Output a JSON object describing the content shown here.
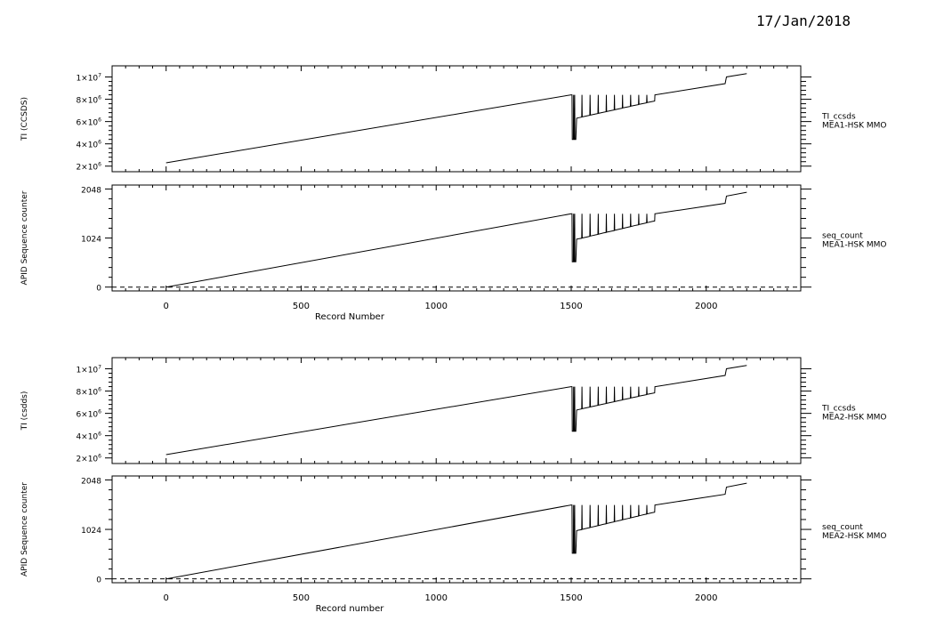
{
  "date": "17/Jan/2018",
  "chart_data": [
    {
      "type": "line",
      "ylabel": "TI (CCSDS)",
      "ylim": [
        1500000,
        11000000
      ],
      "xlim": [
        -200,
        2350
      ],
      "y_ticks": [
        {
          "v": 2000000,
          "label": "2×10",
          "exp": "6"
        },
        {
          "v": 4000000,
          "label": "4×10",
          "exp": "6"
        },
        {
          "v": 6000000,
          "label": "6×10",
          "exp": "6"
        },
        {
          "v": 8000000,
          "label": "8×10",
          "exp": "6"
        },
        {
          "v": 10000000,
          "label": "1×10",
          "exp": "7"
        }
      ],
      "annotation": [
        "TI_ccsds",
        "MEA1-HSK MMO"
      ],
      "series": [
        {
          "x": [
            0,
            1500,
            1503,
            1504,
            1505,
            1508,
            1509,
            1510,
            1512,
            1513,
            1514,
            1516,
            1517,
            1520,
            1530,
            1539,
            1540,
            1541,
            1560,
            1569,
            1570,
            1571,
            1590,
            1599,
            1600,
            1601,
            1620,
            1629,
            1630,
            1631,
            1650,
            1659,
            1660,
            1661,
            1680,
            1689,
            1690,
            1691,
            1710,
            1719,
            1720,
            1721,
            1740,
            1749,
            1750,
            1751,
            1770,
            1779,
            1780,
            1781,
            1800,
            1809,
            1810,
            1811,
            2070,
            2075,
            2150
          ],
          "values": [
            2300000,
            8400000,
            8400000,
            4400000,
            4400000,
            4400000,
            8400000,
            4400000,
            4400000,
            8400000,
            4400000,
            4400000,
            4400000,
            6300000,
            6350000,
            6400000,
            8400000,
            6420000,
            6520000,
            6560000,
            8400000,
            6580000,
            6680000,
            6720000,
            8400000,
            6740000,
            6840000,
            6880000,
            8400000,
            6900000,
            7000000,
            7040000,
            8400000,
            7060000,
            7160000,
            7200000,
            8400000,
            7220000,
            7320000,
            7360000,
            8400000,
            7380000,
            7480000,
            7520000,
            8400000,
            7540000,
            7640000,
            7680000,
            8400000,
            7700000,
            7800000,
            7840000,
            8400000,
            8400000,
            9400000,
            10000000,
            10300000
          ]
        }
      ]
    },
    {
      "type": "line",
      "ylabel": "APID Sequence counter",
      "xlabel": "Record Number",
      "ylim": [
        -80,
        2130
      ],
      "xlim": [
        -200,
        2350
      ],
      "y_ticks": [
        {
          "v": 0,
          "label": "0"
        },
        {
          "v": 1024,
          "label": "1024"
        },
        {
          "v": 2048,
          "label": "2048"
        }
      ],
      "x_ticks": [
        0,
        500,
        1000,
        1500,
        2000
      ],
      "annotation": [
        "seq_count",
        "MEA1-HSK MMO"
      ],
      "series": [
        {
          "x": [
            0,
            1500,
            1503,
            1504,
            1505,
            1508,
            1509,
            1510,
            1512,
            1513,
            1514,
            1516,
            1517,
            1520,
            1530,
            1539,
            1540,
            1541,
            1560,
            1569,
            1570,
            1571,
            1590,
            1599,
            1600,
            1601,
            1620,
            1629,
            1630,
            1631,
            1650,
            1659,
            1660,
            1661,
            1680,
            1689,
            1690,
            1691,
            1710,
            1719,
            1720,
            1721,
            1740,
            1749,
            1750,
            1751,
            1770,
            1779,
            1780,
            1781,
            1800,
            1809,
            1810,
            1811,
            2070,
            2075,
            2150
          ],
          "values": [
            0,
            1530,
            1530,
            530,
            530,
            530,
            1530,
            530,
            530,
            1530,
            530,
            530,
            530,
            1000,
            1010,
            1020,
            1530,
            1025,
            1050,
            1060,
            1530,
            1065,
            1090,
            1100,
            1530,
            1105,
            1130,
            1140,
            1530,
            1145,
            1170,
            1180,
            1530,
            1185,
            1210,
            1220,
            1530,
            1225,
            1250,
            1260,
            1530,
            1265,
            1290,
            1300,
            1530,
            1305,
            1330,
            1340,
            1530,
            1345,
            1370,
            1380,
            1530,
            1530,
            1750,
            1900,
            1980
          ]
        }
      ]
    },
    {
      "type": "line",
      "ylabel": "TI (csdds)",
      "ylim": [
        1500000,
        11000000
      ],
      "xlim": [
        -200,
        2350
      ],
      "y_ticks": [
        {
          "v": 2000000,
          "label": "2×10",
          "exp": "6"
        },
        {
          "v": 4000000,
          "label": "4×10",
          "exp": "6"
        },
        {
          "v": 6000000,
          "label": "6×10",
          "exp": "6"
        },
        {
          "v": 8000000,
          "label": "8×10",
          "exp": "6"
        },
        {
          "v": 10000000,
          "label": "1×10",
          "exp": "7"
        }
      ],
      "annotation": [
        "TI_ccsds",
        "MEA2-HSK MMO"
      ],
      "series": [
        {
          "x": [
            0,
            1500,
            1503,
            1504,
            1505,
            1508,
            1509,
            1510,
            1512,
            1513,
            1514,
            1516,
            1517,
            1520,
            1530,
            1539,
            1540,
            1541,
            1560,
            1569,
            1570,
            1571,
            1590,
            1599,
            1600,
            1601,
            1620,
            1629,
            1630,
            1631,
            1650,
            1659,
            1660,
            1661,
            1680,
            1689,
            1690,
            1691,
            1710,
            1719,
            1720,
            1721,
            1740,
            1749,
            1750,
            1751,
            1770,
            1779,
            1780,
            1781,
            1800,
            1809,
            1810,
            1811,
            2070,
            2075,
            2150
          ],
          "values": [
            2300000,
            8400000,
            8400000,
            4400000,
            4400000,
            4400000,
            8400000,
            4400000,
            4400000,
            8400000,
            4400000,
            4400000,
            4400000,
            6300000,
            6350000,
            6400000,
            8400000,
            6420000,
            6520000,
            6560000,
            8400000,
            6580000,
            6680000,
            6720000,
            8400000,
            6740000,
            6840000,
            6880000,
            8400000,
            6900000,
            7000000,
            7040000,
            8400000,
            7060000,
            7160000,
            7200000,
            8400000,
            7220000,
            7320000,
            7360000,
            8400000,
            7380000,
            7480000,
            7520000,
            8400000,
            7540000,
            7640000,
            7680000,
            8400000,
            7700000,
            7800000,
            7840000,
            8400000,
            8400000,
            9400000,
            10000000,
            10300000
          ]
        }
      ]
    },
    {
      "type": "line",
      "ylabel": "APID Sequence counter",
      "xlabel": "Record number",
      "ylim": [
        -80,
        2130
      ],
      "xlim": [
        -200,
        2350
      ],
      "y_ticks": [
        {
          "v": 0,
          "label": "0"
        },
        {
          "v": 1024,
          "label": "1024"
        },
        {
          "v": 2048,
          "label": "2048"
        }
      ],
      "x_ticks": [
        0,
        500,
        1000,
        1500,
        2000
      ],
      "annotation": [
        "seq_count",
        "MEA2-HSK MMO"
      ],
      "series": [
        {
          "x": [
            0,
            1500,
            1503,
            1504,
            1505,
            1508,
            1509,
            1510,
            1512,
            1513,
            1514,
            1516,
            1517,
            1520,
            1530,
            1539,
            1540,
            1541,
            1560,
            1569,
            1570,
            1571,
            1590,
            1599,
            1600,
            1601,
            1620,
            1629,
            1630,
            1631,
            1650,
            1659,
            1660,
            1661,
            1680,
            1689,
            1690,
            1691,
            1710,
            1719,
            1720,
            1721,
            1740,
            1749,
            1750,
            1751,
            1770,
            1779,
            1780,
            1781,
            1800,
            1809,
            1810,
            1811,
            2070,
            2075,
            2150
          ],
          "values": [
            0,
            1530,
            1530,
            530,
            530,
            530,
            1530,
            530,
            530,
            1530,
            530,
            530,
            530,
            1000,
            1010,
            1020,
            1530,
            1025,
            1050,
            1060,
            1530,
            1065,
            1090,
            1100,
            1530,
            1105,
            1130,
            1140,
            1530,
            1145,
            1170,
            1180,
            1530,
            1185,
            1210,
            1220,
            1530,
            1225,
            1250,
            1260,
            1530,
            1265,
            1290,
            1300,
            1530,
            1305,
            1330,
            1340,
            1530,
            1345,
            1370,
            1380,
            1530,
            1530,
            1750,
            1900,
            1980
          ]
        }
      ]
    }
  ]
}
